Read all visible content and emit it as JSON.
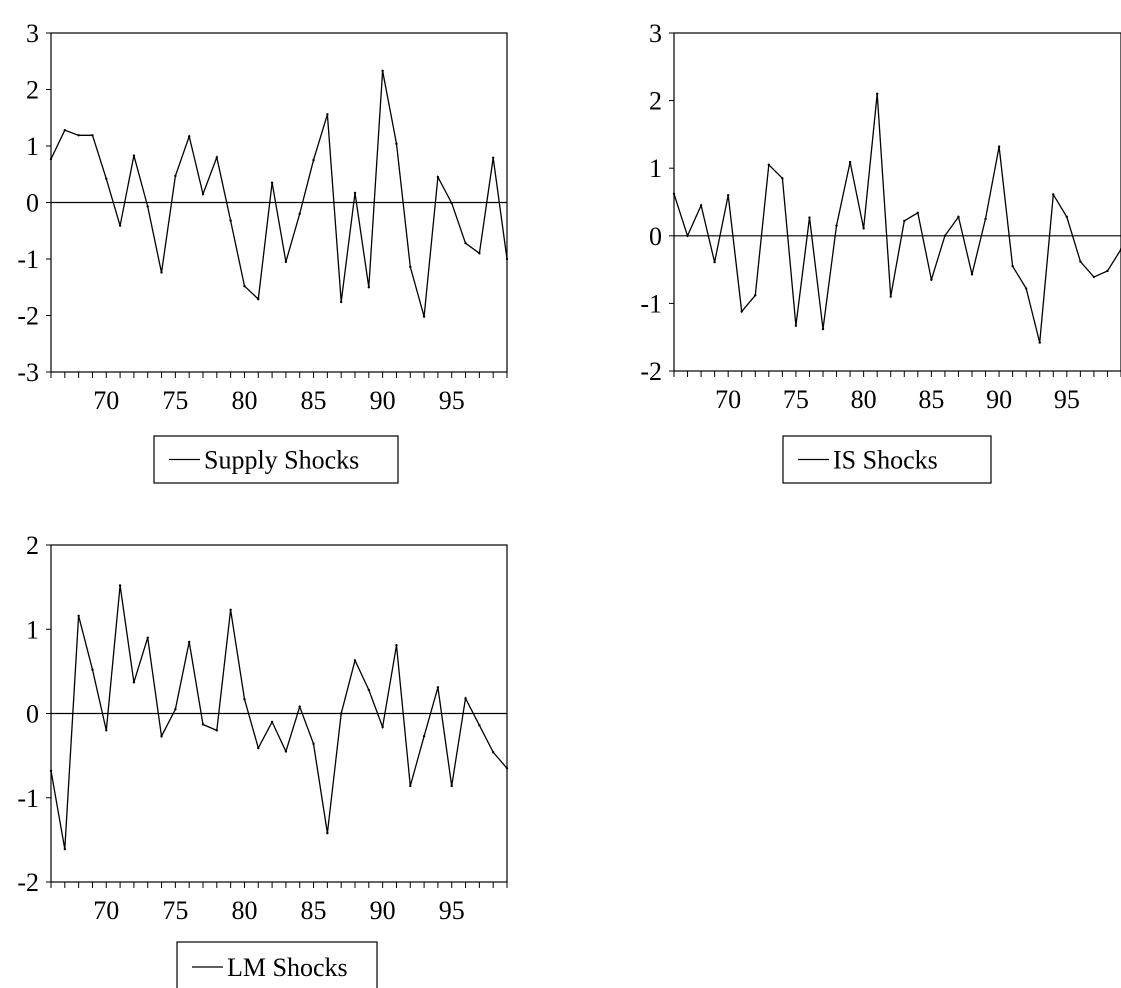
{
  "chart_data": [
    {
      "type": "line",
      "title": "",
      "xlabel": "",
      "ylabel": "",
      "xlim": [
        1966,
        1999
      ],
      "ylim": [
        -3,
        3
      ],
      "y_ticks": [
        "3",
        "2",
        "1",
        "0",
        "-1",
        "-2",
        "-3"
      ],
      "x_ticks": [
        "70",
        "75",
        "80",
        "85",
        "90",
        "95"
      ],
      "zero_line": true,
      "legend": {
        "position": "bottom-center",
        "entries": [
          "Supply Shocks"
        ]
      },
      "series": [
        {
          "name": "Supply Shocks",
          "x": [
            1966,
            1967,
            1968,
            1969,
            1970,
            1971,
            1972,
            1973,
            1974,
            1975,
            1976,
            1977,
            1978,
            1979,
            1980,
            1981,
            1982,
            1983,
            1984,
            1985,
            1986,
            1987,
            1988,
            1989,
            1990,
            1991,
            1992,
            1993,
            1994,
            1995,
            1996,
            1997,
            1998,
            1999
          ],
          "values": [
            0.77,
            1.28,
            1.19,
            1.19,
            0.42,
            -0.41,
            0.83,
            -0.07,
            -1.24,
            0.47,
            1.17,
            0.15,
            0.8,
            -0.32,
            -1.48,
            -1.71,
            0.35,
            -1.05,
            -0.2,
            0.75,
            1.56,
            -1.76,
            0.17,
            -1.5,
            2.33,
            1.04,
            -1.14,
            -2.02,
            0.45,
            -0.01,
            -0.72,
            -0.9,
            0.79,
            -1.0
          ]
        }
      ]
    },
    {
      "type": "line",
      "title": "",
      "xlabel": "",
      "ylabel": "",
      "xlim": [
        1966,
        1999
      ],
      "ylim": [
        -2,
        3
      ],
      "y_ticks": [
        "3",
        "2",
        "1",
        "0",
        "-1",
        "-2"
      ],
      "x_ticks": [
        "70",
        "75",
        "80",
        "85",
        "90",
        "95"
      ],
      "zero_line": true,
      "legend": {
        "position": "bottom-center",
        "entries": [
          "IS Shocks"
        ]
      },
      "series": [
        {
          "name": "IS Shocks",
          "x": [
            1966,
            1967,
            1968,
            1969,
            1970,
            1971,
            1972,
            1973,
            1974,
            1975,
            1976,
            1977,
            1978,
            1979,
            1980,
            1981,
            1982,
            1983,
            1984,
            1985,
            1986,
            1987,
            1988,
            1989,
            1990,
            1991,
            1992,
            1993,
            1994,
            1995,
            1996,
            1997,
            1998,
            1999
          ],
          "values": [
            0.62,
            0.0,
            0.45,
            -0.39,
            0.6,
            -1.12,
            -0.88,
            1.05,
            0.85,
            -1.33,
            0.27,
            -1.38,
            0.15,
            1.09,
            0.11,
            2.1,
            -0.9,
            0.22,
            0.34,
            -0.65,
            0.0,
            0.28,
            -0.57,
            0.25,
            1.32,
            -0.45,
            -0.78,
            -1.58,
            0.61,
            0.28,
            -0.38,
            -0.61,
            -0.52,
            -0.2
          ]
        }
      ]
    },
    {
      "type": "line",
      "title": "",
      "xlabel": "",
      "ylabel": "",
      "xlim": [
        1966,
        1999
      ],
      "ylim": [
        -2,
        2
      ],
      "y_ticks": [
        "2",
        "1",
        "0",
        "-1",
        "-2"
      ],
      "x_ticks": [
        "70",
        "75",
        "80",
        "85",
        "90",
        "95"
      ],
      "zero_line": true,
      "legend": {
        "position": "bottom-center",
        "entries": [
          "LM Shocks"
        ]
      },
      "series": [
        {
          "name": "LM Shocks",
          "x": [
            1966,
            1967,
            1968,
            1969,
            1970,
            1971,
            1972,
            1973,
            1974,
            1975,
            1976,
            1977,
            1978,
            1979,
            1980,
            1981,
            1982,
            1983,
            1984,
            1985,
            1986,
            1987,
            1988,
            1989,
            1990,
            1991,
            1992,
            1993,
            1994,
            1995,
            1996,
            1997,
            1998,
            1999
          ],
          "values": [
            -0.68,
            -1.61,
            1.16,
            0.52,
            -0.2,
            1.52,
            0.37,
            0.9,
            -0.27,
            0.05,
            0.85,
            -0.13,
            -0.2,
            1.23,
            0.17,
            -0.41,
            -0.1,
            -0.45,
            0.08,
            -0.36,
            -1.42,
            0.0,
            0.63,
            0.28,
            -0.16,
            0.81,
            -0.86,
            -0.27,
            0.31,
            -0.86,
            0.18,
            -0.14,
            -0.46,
            -0.65
          ]
        }
      ]
    }
  ]
}
